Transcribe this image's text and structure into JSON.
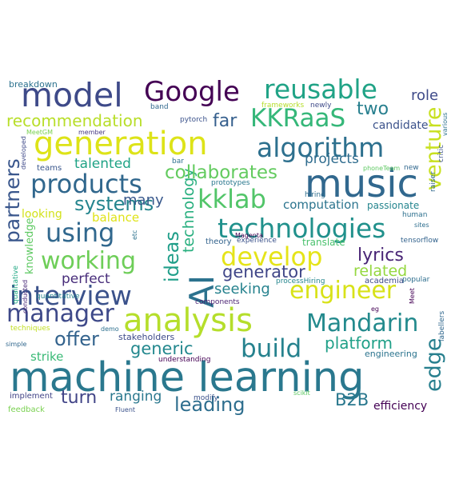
{
  "colors": {
    "background": "#ffffff",
    "palette": [
      "#440154",
      "#3b528b",
      "#21918c",
      "#5ec962",
      "#fde725"
    ]
  },
  "words": [
    {
      "id": "machine-learning",
      "text": "machine learning",
      "color": "#2a788e"
    },
    {
      "id": "music",
      "text": "music",
      "color": "#31688e"
    },
    {
      "id": "ai",
      "text": "AI",
      "color": "#2c728e"
    },
    {
      "id": "generation",
      "text": "generation",
      "color": "#dde318"
    },
    {
      "id": "model",
      "text": "model",
      "color": "#3e4a89"
    },
    {
      "id": "analysis",
      "text": "analysis",
      "color": "#b5de2b"
    },
    {
      "id": "google",
      "text": "Google",
      "color": "#440154"
    },
    {
      "id": "reusable",
      "text": "reusable",
      "color": "#20a386"
    },
    {
      "id": "algorithm",
      "text": "algorithm",
      "color": "#2d708e"
    },
    {
      "id": "kkraas",
      "text": "KKRaaS",
      "color": "#35b779"
    },
    {
      "id": "technologies",
      "text": "technologies",
      "color": "#21918c"
    },
    {
      "id": "interview",
      "text": "interview",
      "color": "#3b528b"
    },
    {
      "id": "products",
      "text": "products",
      "color": "#30678d"
    },
    {
      "id": "develop",
      "text": "develop",
      "color": "#e5e419"
    },
    {
      "id": "kklab",
      "text": "kklab",
      "color": "#52c569"
    },
    {
      "id": "engineer",
      "text": "engineer",
      "color": "#d8e219"
    },
    {
      "id": "manager",
      "text": "manager",
      "color": "#3e4989"
    },
    {
      "id": "mandarin",
      "text": "Mandarin",
      "color": "#238a8d"
    },
    {
      "id": "using",
      "text": "using",
      "color": "#31688e"
    },
    {
      "id": "working",
      "text": "working",
      "color": "#6ece58"
    },
    {
      "id": "build",
      "text": "build",
      "color": "#26828e"
    },
    {
      "id": "ideas",
      "text": "ideas",
      "color": "#1f9e89"
    },
    {
      "id": "venture",
      "text": "venture",
      "color": "#c8e020"
    },
    {
      "id": "edge",
      "text": "edge",
      "color": "#277f8e"
    },
    {
      "id": "partners",
      "text": "partners",
      "color": "#39568c"
    },
    {
      "id": "technology",
      "text": "technology",
      "color": "#29af7f"
    },
    {
      "id": "collaborates",
      "text": "collaborates",
      "color": "#63cb5f"
    },
    {
      "id": "leading",
      "text": "leading",
      "color": "#2e6e8e"
    },
    {
      "id": "lyrics",
      "text": "lyrics",
      "color": "#482475"
    },
    {
      "id": "two",
      "text": "two",
      "color": "#277f8e"
    },
    {
      "id": "far",
      "text": "far",
      "color": "#355f8d"
    },
    {
      "id": "systems",
      "text": "systems",
      "color": "#25858e"
    },
    {
      "id": "generator",
      "text": "generator",
      "color": "#404688"
    },
    {
      "id": "generic",
      "text": "generic",
      "color": "#23888e"
    },
    {
      "id": "platform",
      "text": "platform",
      "color": "#1fa088"
    },
    {
      "id": "offer",
      "text": "offer",
      "color": "#33638d"
    },
    {
      "id": "turn",
      "text": "turn",
      "color": "#414487"
    },
    {
      "id": "b2b",
      "text": "B2B",
      "color": "#2a788e"
    },
    {
      "id": "recommendation",
      "text": "recommendation",
      "color": "#b8de29"
    },
    {
      "id": "role",
      "text": "role",
      "color": "#3e4a89"
    },
    {
      "id": "related",
      "text": "related",
      "color": "#95d840"
    },
    {
      "id": "seeking",
      "text": "seeking",
      "color": "#26828e"
    },
    {
      "id": "many",
      "text": "many",
      "color": "#38588c"
    },
    {
      "id": "projects",
      "text": "projects",
      "color": "#2f6c8e"
    },
    {
      "id": "talented",
      "text": "talented",
      "color": "#20a386"
    },
    {
      "id": "perfect",
      "text": "perfect",
      "color": "#472c7a"
    },
    {
      "id": "ranging",
      "text": "ranging",
      "color": "#2a788e"
    },
    {
      "id": "balance",
      "text": "balance",
      "color": "#dfe318"
    },
    {
      "id": "computation",
      "text": "computation",
      "color": "#2b748e"
    },
    {
      "id": "strike",
      "text": "strike",
      "color": "#3aba76"
    },
    {
      "id": "efficiency",
      "text": "efficiency",
      "color": "#440154"
    },
    {
      "id": "candidate",
      "text": "candidate",
      "color": "#3b528b"
    },
    {
      "id": "looking",
      "text": "looking",
      "color": "#d2e21b"
    },
    {
      "id": "knowledge",
      "text": "knowledge",
      "color": "#5ec962"
    },
    {
      "id": "breakdown",
      "text": "breakdown",
      "color": "#2c728e"
    },
    {
      "id": "band",
      "text": "band",
      "color": "#31688e"
    },
    {
      "id": "pytorch",
      "text": "pytorch",
      "color": "#3b528b"
    },
    {
      "id": "frameworks",
      "text": "frameworks",
      "color": "#b5de2b"
    },
    {
      "id": "newly",
      "text": "newly",
      "color": "#3e4a89"
    },
    {
      "id": "member",
      "text": "member",
      "color": "#453781"
    },
    {
      "id": "meetgm",
      "text": "MeetGM",
      "color": "#7ad151"
    },
    {
      "id": "developed",
      "text": "developed",
      "color": "#3e4989"
    },
    {
      "id": "teams",
      "text": "teams",
      "color": "#39568c"
    },
    {
      "id": "bar",
      "text": "bar",
      "color": "#2d708e"
    },
    {
      "id": "prototypes",
      "text": "prototypes",
      "color": "#2a788e"
    },
    {
      "id": "hiring",
      "text": "hiring",
      "color": "#2e6e8e"
    },
    {
      "id": "passionate",
      "text": "passionate",
      "color": "#25858e"
    },
    {
      "id": "translate",
      "text": "translate",
      "color": "#4ac16d"
    },
    {
      "id": "experience",
      "text": "experience",
      "color": "#3b528b"
    },
    {
      "id": "theory",
      "text": "theory",
      "color": "#33638d"
    },
    {
      "id": "etc",
      "text": "etc",
      "color": "#2c728e"
    },
    {
      "id": "magenta",
      "text": "Magenta",
      "color": "#440154"
    },
    {
      "id": "components",
      "text": "components",
      "color": "#481f70"
    },
    {
      "id": "processhiring",
      "text": "processHiring",
      "color": "#24868e"
    },
    {
      "id": "academia",
      "text": "academia",
      "color": "#3e4a89"
    },
    {
      "id": "popular",
      "text": "popular",
      "color": "#2e6e8e"
    },
    {
      "id": "quantitative",
      "text": "quantitative",
      "color": "#26828e"
    },
    {
      "id": "qualitative",
      "text": "qualitative",
      "color": "#22a884"
    },
    {
      "id": "conducted",
      "text": "conducted",
      "color": "#482878"
    },
    {
      "id": "techniques",
      "text": "techniques",
      "color": "#c2df23"
    },
    {
      "id": "demo",
      "text": "demo",
      "color": "#2d708e"
    },
    {
      "id": "stakeholders",
      "text": "stakeholders",
      "color": "#3e4a89"
    },
    {
      "id": "understanding",
      "text": "understanding",
      "color": "#440154"
    },
    {
      "id": "simple",
      "text": "simple",
      "color": "#31688e"
    },
    {
      "id": "engineering",
      "text": "engineering",
      "color": "#2b748e"
    },
    {
      "id": "eg",
      "text": "eg",
      "color": "#440154"
    },
    {
      "id": "meet",
      "text": "Meet",
      "color": "#440154"
    },
    {
      "id": "labellers",
      "text": "labellers",
      "color": "#31688e"
    },
    {
      "id": "implement",
      "text": "implement",
      "color": "#414487"
    },
    {
      "id": "modify",
      "text": "modify",
      "color": "#3b528b"
    },
    {
      "id": "scikit",
      "text": "scikit",
      "color": "#5ec962"
    },
    {
      "id": "fluent",
      "text": "Fluent",
      "color": "#3b528b"
    },
    {
      "id": "feedback",
      "text": "feedback",
      "color": "#7ad151"
    },
    {
      "id": "tensorflow",
      "text": "tensorflow",
      "color": "#33638d"
    },
    {
      "id": "human",
      "text": "human",
      "color": "#2d708e"
    },
    {
      "id": "sites",
      "text": "sites",
      "color": "#2e6e8e"
    },
    {
      "id": "new",
      "text": "new",
      "color": "#31688e"
    },
    {
      "id": "phoneteam",
      "text": "phoneTeam",
      "color": "#5ec962"
    },
    {
      "id": "raiser",
      "text": "raiser",
      "color": "#31688e"
    },
    {
      "id": "critic",
      "text": "critic",
      "color": "#3b528b"
    },
    {
      "id": "various",
      "text": "various",
      "color": "#2c728e"
    }
  ]
}
